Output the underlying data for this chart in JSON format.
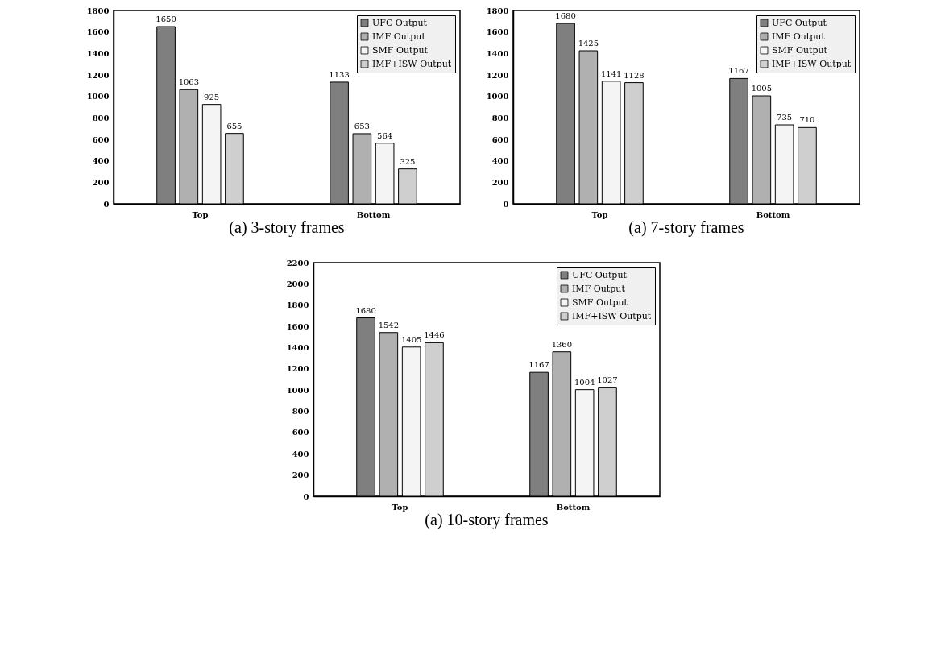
{
  "chart_data": [
    {
      "type": "bar",
      "categories": [
        "Top",
        "Bottom"
      ],
      "annotations": [
        "(a) 3-story frames"
      ],
      "ylim": [
        0,
        1800
      ],
      "yticks": [
        0,
        200,
        400,
        600,
        800,
        1000,
        1200,
        1400,
        1600,
        1800
      ],
      "grid": false,
      "legend": "top right",
      "data_labels": true,
      "series": [
        {
          "name": "UFC Output",
          "color": "#7f7f7f",
          "values": [
            1650,
            1133
          ]
        },
        {
          "name": "IMF Output",
          "color": "#b0b0b0",
          "values": [
            1063,
            653
          ]
        },
        {
          "name": "SMF Output",
          "color": "#f4f4f4",
          "values": [
            925,
            564
          ]
        },
        {
          "name": "IMF+ISW Output",
          "color": "#cfcfcf",
          "values": [
            655,
            325
          ]
        }
      ]
    },
    {
      "type": "bar",
      "categories": [
        "Top",
        "Bottom"
      ],
      "annotations": [
        "(a) 7-story frames"
      ],
      "ylim": [
        0,
        1800
      ],
      "yticks": [
        0,
        200,
        400,
        600,
        800,
        1000,
        1200,
        1400,
        1600,
        1800
      ],
      "grid": false,
      "legend": "top right",
      "data_labels": true,
      "series": [
        {
          "name": "UFC Output",
          "color": "#7f7f7f",
          "values": [
            1680,
            1167
          ]
        },
        {
          "name": "IMF Output",
          "color": "#b0b0b0",
          "values": [
            1425,
            1005
          ]
        },
        {
          "name": "SMF Output",
          "color": "#f4f4f4",
          "values": [
            1141,
            735
          ]
        },
        {
          "name": "IMF+ISW Output",
          "color": "#cfcfcf",
          "values": [
            1128,
            710
          ]
        }
      ]
    },
    {
      "type": "bar",
      "categories": [
        "Top",
        "Bottom"
      ],
      "annotations": [
        "(a) 10-story frames"
      ],
      "ylim": [
        0,
        2200
      ],
      "yticks": [
        0,
        200,
        400,
        600,
        800,
        1000,
        1200,
        1400,
        1600,
        1800,
        2000,
        2200
      ],
      "grid": false,
      "legend": "top right",
      "data_labels": true,
      "series": [
        {
          "name": "UFC Output",
          "color": "#7f7f7f",
          "values": [
            1680,
            1167
          ]
        },
        {
          "name": "IMF Output",
          "color": "#b0b0b0",
          "values": [
            1542,
            1360
          ]
        },
        {
          "name": "SMF Output",
          "color": "#f4f4f4",
          "values": [
            1405,
            1004
          ]
        },
        {
          "name": "IMF+ISW Output",
          "color": "#cfcfcf",
          "values": [
            1446,
            1027
          ]
        }
      ]
    }
  ]
}
